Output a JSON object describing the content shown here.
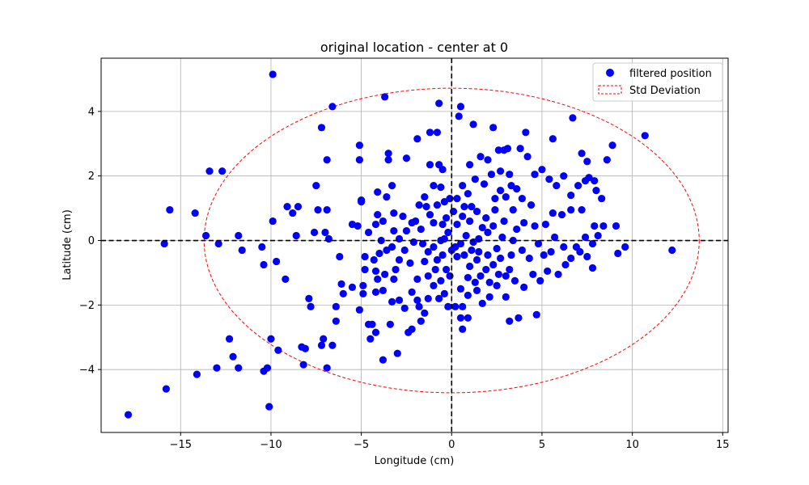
{
  "chart_data": {
    "type": "scatter",
    "title": "original location - center at 0",
    "xlabel": "Longitude (cm)",
    "ylabel": "Latitude (cm)",
    "xlim": [
      -19.4,
      15.3
    ],
    "ylim": [
      -5.95,
      5.65
    ],
    "xticks": [
      -15,
      -10,
      -5,
      0,
      5,
      10,
      15
    ],
    "xtick_labels": [
      "−15",
      "−10",
      "−5",
      "0",
      "5",
      "10",
      "15"
    ],
    "yticks": [
      -4,
      -2,
      0,
      2,
      4
    ],
    "ytick_labels": [
      "−4",
      "−2",
      "0",
      "2",
      "4"
    ],
    "grid": true,
    "legend_position": "top-right",
    "legend": [
      {
        "label": "filtered position",
        "kind": "marker",
        "color": "#0000ff"
      },
      {
        "label": "Std Deviation",
        "kind": "dashed-rect",
        "color": "#ff0000"
      }
    ],
    "reference_lines": {
      "x": 0,
      "y": 0,
      "color": "#000000",
      "style": "dashed"
    },
    "std_ellipse": {
      "center": [
        0,
        0
      ],
      "x_radius": 13.7,
      "y_radius": 4.72,
      "color": "#ff0000",
      "style": "dashed"
    },
    "series": [
      {
        "name": "filtered position",
        "color": "#0000ff",
        "points": [
          [
            -9.9,
            5.15
          ],
          [
            -3.7,
            4.45
          ],
          [
            -6.6,
            4.15
          ],
          [
            -7.2,
            3.5
          ],
          [
            -5.1,
            2.95
          ],
          [
            -6.9,
            2.5
          ],
          [
            -13.4,
            2.15
          ],
          [
            -12.7,
            2.15
          ],
          [
            -15.6,
            0.95
          ],
          [
            -14.2,
            0.85
          ],
          [
            -13.6,
            0.15
          ],
          [
            -11.8,
            0.15
          ],
          [
            -15.9,
            -0.1
          ],
          [
            -12.9,
            -0.1
          ],
          [
            -11.6,
            -0.3
          ],
          [
            -10.5,
            -0.2
          ],
          [
            -9.7,
            -0.65
          ],
          [
            -10.4,
            -0.75
          ],
          [
            -9.2,
            -1.2
          ],
          [
            -8.5,
            1.05
          ],
          [
            -9.1,
            1.05
          ],
          [
            -8.8,
            0.85
          ],
          [
            -9.9,
            0.6
          ],
          [
            -7.4,
            0.95
          ],
          [
            -6.9,
            0.95
          ],
          [
            -7.6,
            0.25
          ],
          [
            -8.6,
            0.15
          ],
          [
            -7.0,
            0.25
          ],
          [
            -6.8,
            0.05
          ],
          [
            -7.5,
            1.7
          ],
          [
            -12.3,
            -3.05
          ],
          [
            -12.1,
            -3.6
          ],
          [
            -13.0,
            -3.95
          ],
          [
            -14.1,
            -4.15
          ],
          [
            -11.8,
            -3.95
          ],
          [
            -10.4,
            -4.05
          ],
          [
            -10.2,
            -3.95
          ],
          [
            -9.6,
            -3.4
          ],
          [
            -10.0,
            -3.05
          ],
          [
            -8.1,
            -3.35
          ],
          [
            -8.3,
            -3.3
          ],
          [
            -7.1,
            -3.05
          ],
          [
            -7.2,
            -3.25
          ],
          [
            -6.6,
            -3.25
          ],
          [
            -6.9,
            -3.95
          ],
          [
            -8.2,
            -3.85
          ],
          [
            -15.8,
            -4.6
          ],
          [
            -17.9,
            -5.4
          ],
          [
            -10.1,
            -5.15
          ],
          [
            -7.9,
            -1.8
          ],
          [
            -7.8,
            -2.05
          ],
          [
            -6.4,
            -2.05
          ],
          [
            -6.4,
            -2.5
          ],
          [
            -5.1,
            -2.15
          ],
          [
            -4.4,
            -2.6
          ],
          [
            -4.6,
            -2.6
          ],
          [
            -4.2,
            -2.85
          ],
          [
            -4.5,
            -3.05
          ],
          [
            -3.8,
            -3.7
          ],
          [
            -3.0,
            -3.5
          ],
          [
            -3.4,
            -2.6
          ],
          [
            -6.0,
            -1.65
          ],
          [
            -5.5,
            -1.45
          ],
          [
            -6.1,
            -1.35
          ],
          [
            -4.9,
            -1.4
          ],
          [
            -4.9,
            -1.65
          ],
          [
            -4.2,
            -1.6
          ],
          [
            -4.1,
            -1.2
          ],
          [
            -3.8,
            -1.55
          ],
          [
            -6.2,
            -0.5
          ],
          [
            -5.5,
            0.5
          ],
          [
            -5.2,
            0.45
          ],
          [
            -4.6,
            0.25
          ],
          [
            -4.8,
            -0.5
          ],
          [
            -4.8,
            -0.9
          ],
          [
            -4.3,
            -0.6
          ],
          [
            -4.0,
            -0.4
          ],
          [
            -4.2,
            -0.95
          ],
          [
            -3.7,
            -1.05
          ],
          [
            -3.6,
            -0.3
          ],
          [
            -5.0,
            1.25
          ],
          [
            -5.0,
            1.2
          ],
          [
            -4.1,
            1.5
          ],
          [
            -3.6,
            1.35
          ],
          [
            -3.3,
            1.7
          ],
          [
            -3.5,
            2.5
          ],
          [
            -3.5,
            2.7
          ],
          [
            -5.1,
            2.5
          ],
          [
            -4.1,
            0.8
          ],
          [
            -3.8,
            0.6
          ],
          [
            -4.2,
            0.5
          ],
          [
            -3.2,
            0.85
          ],
          [
            -3.2,
            0.3
          ],
          [
            -2.9,
            0.05
          ],
          [
            -2.5,
            0.3
          ],
          [
            -2.2,
            0.55
          ],
          [
            -3.3,
            -0.2
          ],
          [
            -2.6,
            -0.3
          ],
          [
            -2.9,
            -0.6
          ],
          [
            -2.3,
            -0.7
          ],
          [
            -3.2,
            -1.2
          ],
          [
            -2.9,
            -1.85
          ],
          [
            -3.3,
            -1.9
          ],
          [
            -2.2,
            -1.6
          ],
          [
            -2.6,
            -2.1
          ],
          [
            -2.2,
            -2.75
          ],
          [
            -2.4,
            -2.85
          ],
          [
            -1.7,
            -2.5
          ],
          [
            -1.5,
            -2.25
          ],
          [
            -1.8,
            -2.05
          ],
          [
            -1.3,
            -1.8
          ],
          [
            -1.9,
            -1.85
          ],
          [
            -2.5,
            2.55
          ],
          [
            -1.9,
            3.15
          ],
          [
            -1.2,
            3.35
          ],
          [
            -0.8,
            3.35
          ],
          [
            -0.7,
            4.25
          ],
          [
            -0.7,
            2.35
          ],
          [
            -0.5,
            2.2
          ],
          [
            -1.2,
            2.35
          ],
          [
            -1.0,
            1.7
          ],
          [
            -0.6,
            1.65
          ],
          [
            -1.5,
            1.35
          ],
          [
            -1.8,
            1.1
          ],
          [
            -1.4,
            1.05
          ],
          [
            -0.8,
            1.1
          ],
          [
            -0.4,
            1.2
          ],
          [
            -0.1,
            1.3
          ],
          [
            -2.0,
            0.6
          ],
          [
            -1.7,
            0.35
          ],
          [
            -1.2,
            0.8
          ],
          [
            -1.0,
            0.55
          ],
          [
            -0.5,
            0.5
          ],
          [
            -0.4,
            0.05
          ],
          [
            -1.6,
            -0.1
          ],
          [
            -1.3,
            -0.35
          ],
          [
            -1.0,
            -0.2
          ],
          [
            -0.8,
            -0.6
          ],
          [
            -0.5,
            -0.45
          ],
          [
            -0.3,
            -0.9
          ],
          [
            -1.9,
            -1.2
          ],
          [
            -1.3,
            -1.1
          ],
          [
            -1.0,
            -1.4
          ],
          [
            -0.6,
            -1.25
          ],
          [
            -0.4,
            -1.65
          ],
          [
            -0.7,
            -1.8
          ],
          [
            -0.2,
            -2.05
          ],
          [
            0.2,
            -2.05
          ],
          [
            0.6,
            -2.05
          ],
          [
            0.5,
            -2.4
          ],
          [
            0.6,
            -2.75
          ],
          [
            0.9,
            -2.4
          ],
          [
            0.5,
            -1.5
          ],
          [
            0.9,
            -1.7
          ],
          [
            1.3,
            -1.3
          ],
          [
            1.7,
            -1.95
          ],
          [
            2.1,
            -1.75
          ],
          [
            2.5,
            -1.4
          ],
          [
            1.0,
            -0.8
          ],
          [
            1.4,
            -0.6
          ],
          [
            1.9,
            -0.9
          ],
          [
            2.3,
            -0.75
          ],
          [
            2.7,
            -0.55
          ],
          [
            3.2,
            -0.9
          ],
          [
            0.2,
            -0.2
          ],
          [
            0.5,
            -0.1
          ],
          [
            0.8,
            0.15
          ],
          [
            1.1,
            -0.3
          ],
          [
            1.5,
            0.05
          ],
          [
            2.0,
            0.25
          ],
          [
            0.3,
            0.5
          ],
          [
            0.6,
            0.75
          ],
          [
            1.0,
            0.6
          ],
          [
            1.4,
            0.9
          ],
          [
            1.9,
            0.7
          ],
          [
            2.4,
            0.95
          ],
          [
            0.3,
            1.3
          ],
          [
            0.6,
            1.7
          ],
          [
            0.9,
            1.45
          ],
          [
            1.3,
            1.9
          ],
          [
            1.8,
            1.75
          ],
          [
            2.2,
            2.05
          ],
          [
            0.4,
            3.85
          ],
          [
            0.5,
            4.15
          ],
          [
            1.2,
            3.6
          ],
          [
            2.3,
            3.5
          ],
          [
            1.0,
            2.35
          ],
          [
            1.6,
            2.6
          ],
          [
            2.6,
            2.8
          ],
          [
            2.9,
            2.8
          ],
          [
            2.0,
            2.5
          ],
          [
            2.7,
            2.15
          ],
          [
            3.2,
            2.05
          ],
          [
            3.6,
            1.6
          ],
          [
            3.0,
            1.35
          ],
          [
            3.4,
            0.95
          ],
          [
            3.9,
            1.3
          ],
          [
            4.4,
            1.1
          ],
          [
            4.0,
            0.55
          ],
          [
            4.6,
            0.45
          ],
          [
            3.4,
            0.0
          ],
          [
            3.9,
            -0.3
          ],
          [
            4.3,
            -0.55
          ],
          [
            4.8,
            -0.1
          ],
          [
            5.1,
            -0.45
          ],
          [
            5.5,
            -0.35
          ],
          [
            3.0,
            -1.1
          ],
          [
            3.5,
            -1.25
          ],
          [
            4.0,
            -1.45
          ],
          [
            4.5,
            -1.05
          ],
          [
            4.9,
            -1.25
          ],
          [
            5.3,
            -0.95
          ],
          [
            3.2,
            -2.5
          ],
          [
            3.7,
            -2.4
          ],
          [
            4.7,
            -2.3
          ],
          [
            3.0,
            -1.75
          ],
          [
            2.1,
            -1.3
          ],
          [
            1.6,
            -1.1
          ],
          [
            4.1,
            3.35
          ],
          [
            3.1,
            2.85
          ],
          [
            3.8,
            2.85
          ],
          [
            4.2,
            2.6
          ],
          [
            4.6,
            2.05
          ],
          [
            5.0,
            2.2
          ],
          [
            5.4,
            1.9
          ],
          [
            5.8,
            1.7
          ],
          [
            6.2,
            2.0
          ],
          [
            6.6,
            1.4
          ],
          [
            7.0,
            1.7
          ],
          [
            7.4,
            1.85
          ],
          [
            5.6,
            3.15
          ],
          [
            6.7,
            3.8
          ],
          [
            7.2,
            2.7
          ],
          [
            7.5,
            2.45
          ],
          [
            7.6,
            1.95
          ],
          [
            7.9,
            1.85
          ],
          [
            8.0,
            1.55
          ],
          [
            8.3,
            1.3
          ],
          [
            8.6,
            2.5
          ],
          [
            8.9,
            2.95
          ],
          [
            8.4,
            0.45
          ],
          [
            7.9,
            0.45
          ],
          [
            7.2,
            0.95
          ],
          [
            6.6,
            0.95
          ],
          [
            6.1,
            0.8
          ],
          [
            5.6,
            0.85
          ],
          [
            5.2,
            0.5
          ],
          [
            5.7,
            0.1
          ],
          [
            6.2,
            -0.2
          ],
          [
            6.9,
            -0.2
          ],
          [
            7.4,
            0.1
          ],
          [
            7.8,
            -0.1
          ],
          [
            8.1,
            0.15
          ],
          [
            7.5,
            -0.5
          ],
          [
            7.1,
            -0.35
          ],
          [
            6.6,
            -0.55
          ],
          [
            6.3,
            -0.75
          ],
          [
            5.9,
            -1.05
          ],
          [
            7.8,
            -0.85
          ],
          [
            9.1,
            0.45
          ],
          [
            9.6,
            -0.2
          ],
          [
            9.2,
            -0.4
          ],
          [
            10.7,
            3.25
          ],
          [
            12.2,
            -0.3
          ],
          [
            0.0,
            -0.3
          ],
          [
            -0.2,
            0.25
          ],
          [
            0.1,
            0.9
          ],
          [
            -0.1,
            -1.1
          ],
          [
            0.3,
            -0.5
          ],
          [
            0.7,
            -0.45
          ],
          [
            1.2,
            -0.05
          ],
          [
            1.7,
            0.4
          ],
          [
            2.3,
            0.45
          ],
          [
            2.8,
            0.1
          ],
          [
            2.5,
            -0.25
          ],
          [
            2.0,
            -0.45
          ],
          [
            1.5,
            -0.35
          ],
          [
            0.9,
            -1.15
          ],
          [
            1.4,
            -1.55
          ],
          [
            2.6,
            -1.05
          ],
          [
            3.3,
            -0.45
          ],
          [
            3.6,
            0.35
          ],
          [
            2.9,
            0.6
          ],
          [
            3.3,
            1.7
          ],
          [
            2.7,
            1.55
          ],
          [
            2.4,
            1.3
          ],
          [
            1.1,
            1.05
          ],
          [
            0.7,
            1.05
          ],
          [
            -0.3,
            0.7
          ],
          [
            -0.6,
            0.0
          ],
          [
            -0.9,
            -0.9
          ],
          [
            -1.5,
            -0.65
          ],
          [
            -2.1,
            -0.05
          ],
          [
            -2.7,
            0.75
          ],
          [
            -3.1,
            -0.9
          ],
          [
            -3.9,
            0.0
          ]
        ]
      }
    ]
  }
}
